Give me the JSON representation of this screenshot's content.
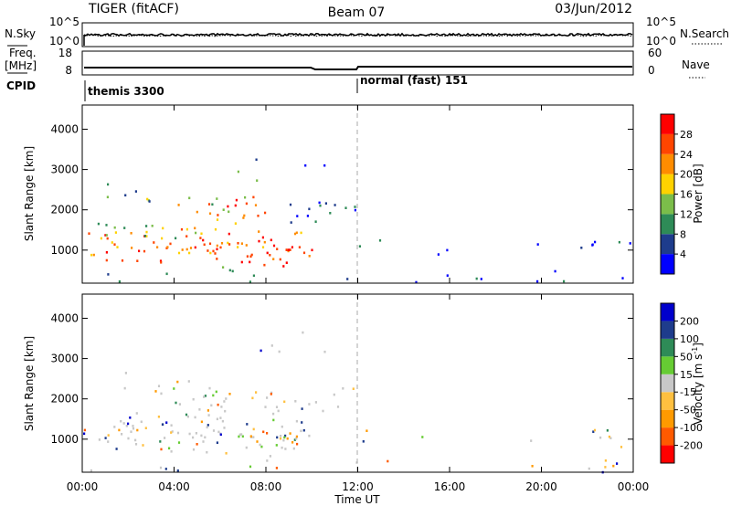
{
  "header": {
    "radar": "TIGER (fitACF)",
    "beam": "Beam 07",
    "date": "03/Jun/2012"
  },
  "top_panels": {
    "nsky_label": "N.Sky",
    "nsky_ticks": [
      "10^5",
      "10^0"
    ],
    "nsearch_label": "N.Search",
    "nsearch_ticks": [
      "10^5",
      "10^0"
    ],
    "freq_label": "Freq.",
    "freq_unit": "[MHz]",
    "freq_ticks": [
      "18",
      "8"
    ],
    "nave_label": "Nave",
    "nave_ticks": [
      "60",
      "0"
    ],
    "cpid_label": "CPID",
    "cpid_entries": [
      {
        "text": "themis 3300",
        "start_hour": 0
      },
      {
        "text": "normal (fast) 151",
        "start_hour": 12
      }
    ]
  },
  "chart_data": [
    {
      "type": "heatmap",
      "name": "power",
      "ylabel": "Slant Range [km]",
      "ylim": [
        180,
        4600
      ],
      "yticks": [
        "1000",
        "2000",
        "3000",
        "4000"
      ],
      "xlim_hours": [
        0,
        24
      ],
      "colorbar_title": "Power [dB]",
      "colorbar_ticks": [
        "4",
        "8",
        "12",
        "16",
        "20",
        "24",
        "28"
      ],
      "colorbar_range": [
        0,
        32
      ],
      "colors": [
        "#0000ff",
        "#1e3c8c",
        "#2e8b57",
        "#7bbd4a",
        "#ffd200",
        "#ff8c00",
        "#ff4500",
        "#ff0000"
      ]
    },
    {
      "type": "heatmap",
      "name": "velocity",
      "ylabel": "Slant Range [km]",
      "ylim": [
        180,
        4600
      ],
      "yticks": [
        "1000",
        "2000",
        "3000",
        "4000"
      ],
      "xlim_hours": [
        0,
        24
      ],
      "xticks": [
        "00:00",
        "04:00",
        "08:00",
        "12:00",
        "16:00",
        "20:00",
        "00:00"
      ],
      "xlabel": "Time UT",
      "colorbar_title": "Velocity [m s",
      "colorbar_title_sup": "-1",
      "colorbar_title_end": "]",
      "colorbar_ticks": [
        "-200",
        "-100",
        "-50",
        "-15",
        "15",
        "50",
        "100",
        "200"
      ],
      "colors": [
        "#ff0000",
        "#ff5a00",
        "#ff9a00",
        "#ffc040",
        "#c8c8c8",
        "#66cc33",
        "#2e8b57",
        "#1e3c8c",
        "#0000cc"
      ]
    }
  ]
}
